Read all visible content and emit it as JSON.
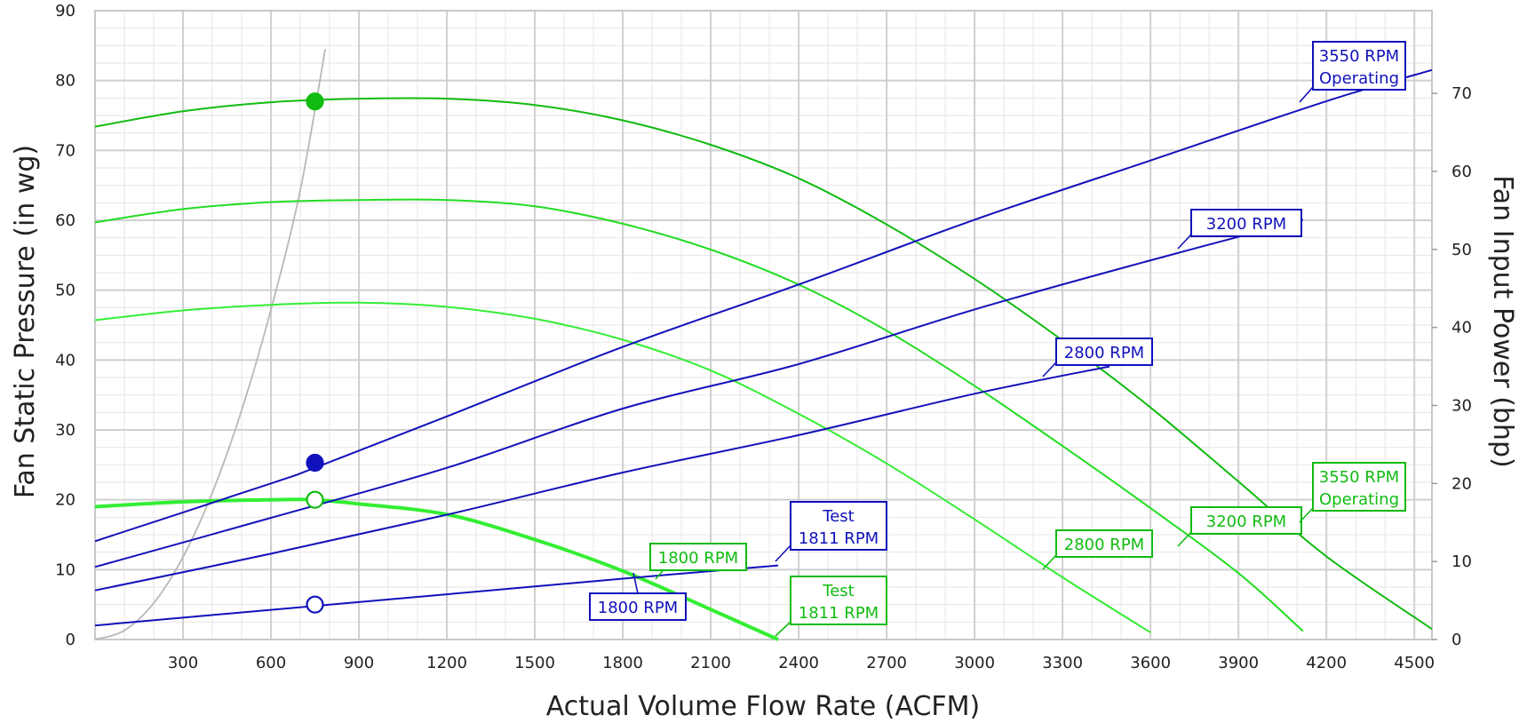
{
  "chart_data": {
    "type": "line",
    "xlabel": "Actual Volume Flow Rate (ACFM)",
    "ylabel": "Fan Static Pressure (in wg)",
    "y2label": "Fan Input Power (bhp)",
    "xlim": [
      0,
      4560
    ],
    "ylim": [
      0,
      90
    ],
    "y2lim": [
      0,
      80.6
    ],
    "x_ticks": [
      300,
      600,
      900,
      1200,
      1500,
      1800,
      2100,
      2400,
      2700,
      3000,
      3300,
      3600,
      3900,
      4200,
      4500
    ],
    "y_ticks": [
      0,
      10,
      20,
      30,
      40,
      50,
      60,
      70,
      80,
      90
    ],
    "y2_ticks": [
      0,
      10,
      20,
      30,
      40,
      50,
      60,
      70
    ],
    "grid": true,
    "colors": {
      "pressure_curves": "#11bb11",
      "pressure_curves_light": "#33ee33",
      "power_curves": "#1111bb",
      "system_curve": "#b8b8b8",
      "operating_point_pressure": "#11bb11",
      "operating_point_power": "#1111bb"
    },
    "pressure_series": [
      {
        "name": "3550 RPM Operating",
        "color": "#11bb11",
        "width": 2,
        "x": [
          0,
          300,
          600,
          900,
          1200,
          1500,
          1800,
          2100,
          2400,
          2700,
          3000,
          3300,
          3600,
          3900,
          4200,
          4560
        ],
        "y": [
          73.4,
          75.6,
          76.9,
          77.4,
          77.4,
          76.5,
          74.3,
          70.8,
          66.0,
          59.4,
          51.6,
          42.8,
          33.2,
          22.6,
          11.9,
          1.5
        ]
      },
      {
        "name": "3200 RPM",
        "color": "#22dd22",
        "width": 2,
        "x": [
          0,
          300,
          600,
          900,
          1200,
          1500,
          1800,
          2100,
          2400,
          2700,
          3000,
          3300,
          3600,
          3900,
          4120
        ],
        "y": [
          59.7,
          61.6,
          62.6,
          62.9,
          62.9,
          62.0,
          59.5,
          55.8,
          50.8,
          44.2,
          36.3,
          27.7,
          18.8,
          9.5,
          1.2
        ]
      },
      {
        "name": "2800 RPM",
        "color": "#33ee33",
        "width": 2,
        "x": [
          0,
          300,
          600,
          900,
          1200,
          1500,
          1800,
          2100,
          2400,
          2700,
          3000,
          3300,
          3600
        ],
        "y": [
          45.7,
          47.1,
          47.9,
          48.2,
          47.6,
          45.9,
          42.9,
          38.5,
          32.3,
          25.2,
          17.2,
          8.9,
          1.0
        ]
      },
      {
        "name": "Test 1811 RPM",
        "color": "#33ee33",
        "width": 4,
        "x": [
          0,
          300,
          600,
          750,
          900,
          1200,
          1500,
          1800,
          2100,
          2330
        ],
        "y": [
          19.0,
          19.7,
          20.0,
          20.0,
          19.4,
          17.9,
          14.3,
          9.8,
          4.3,
          0.0
        ]
      }
    ],
    "power_series": [
      {
        "name": "3550 RPM Operating",
        "x": [
          0,
          600,
          750,
          1200,
          1800,
          2400,
          3000,
          3600,
          4200,
          4560
        ],
        "y": [
          12.6,
          20.0,
          22.0,
          28.6,
          37.5,
          45.5,
          53.8,
          61.4,
          69.0,
          73.0
        ]
      },
      {
        "name": "3200 RPM",
        "x": [
          0,
          600,
          1200,
          1800,
          2400,
          3000,
          3600,
          4120
        ],
        "y": [
          9.3,
          15.6,
          22.0,
          29.6,
          35.3,
          42.3,
          48.6,
          53.8
        ]
      },
      {
        "name": "2800 RPM",
        "x": [
          0,
          600,
          1200,
          1800,
          2400,
          3000,
          3460
        ],
        "y": [
          6.3,
          11.0,
          16.0,
          21.4,
          26.2,
          31.5,
          35.0
        ]
      },
      {
        "name": "Test 1811 RPM",
        "x": [
          0,
          750,
          1200,
          1800,
          2330
        ],
        "y": [
          1.8,
          4.3,
          5.8,
          7.8,
          9.5
        ]
      }
    ],
    "system_curve": {
      "x": [
        0,
        100,
        200,
        300,
        400,
        500,
        600,
        700,
        785
      ],
      "y": [
        0,
        1.3,
        5.2,
        11.8,
        21.0,
        32.8,
        47.2,
        64.3,
        84.5
      ]
    },
    "operating_points": [
      {
        "x": 750,
        "y": 77.0,
        "axis": "left",
        "style": "filled",
        "color": "#11bb11"
      },
      {
        "x": 750,
        "y": 25.3,
        "axis": "left",
        "style": "filled",
        "color": "#1111bb"
      },
      {
        "x": 750,
        "y": 20.0,
        "axis": "left",
        "style": "open",
        "color": "#11bb11"
      },
      {
        "x": 750,
        "y": 5.0,
        "axis": "left",
        "style": "open",
        "color": "#1111bb"
      }
    ],
    "annotations": [
      {
        "lines": [
          "3550 RPM",
          "Operating"
        ],
        "color": "#1111bb"
      },
      {
        "lines": [
          "3200 RPM"
        ],
        "color": "#1111bb"
      },
      {
        "lines": [
          "2800 RPM"
        ],
        "color": "#1111bb"
      },
      {
        "lines": [
          "Test",
          "1811 RPM"
        ],
        "color": "#1111bb"
      },
      {
        "lines": [
          "1800 RPM"
        ],
        "color": "#1111bb"
      },
      {
        "lines": [
          "1800 RPM"
        ],
        "color": "#11bb11"
      },
      {
        "lines": [
          "Test",
          "1811 RPM"
        ],
        "color": "#11bb11"
      },
      {
        "lines": [
          "2800 RPM"
        ],
        "color": "#11bb11"
      },
      {
        "lines": [
          "3200 RPM"
        ],
        "color": "#11bb11"
      },
      {
        "lines": [
          "3550 RPM",
          "Operating"
        ],
        "color": "#11bb11"
      }
    ]
  }
}
